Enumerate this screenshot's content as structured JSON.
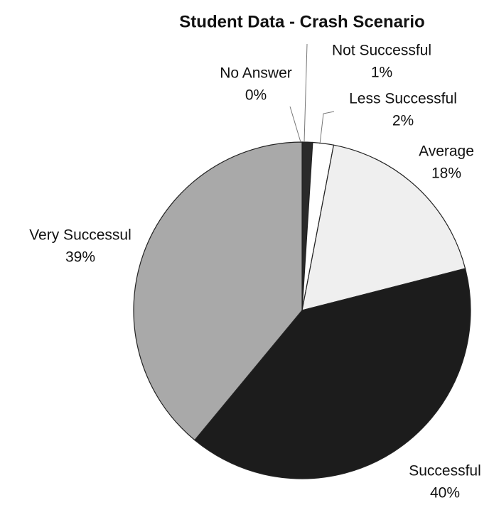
{
  "chart_data": {
    "type": "pie",
    "title": "Student Data - Crash Scenario",
    "categories": [
      "No Answer",
      "Not Successful",
      "Less Successful",
      "Average",
      "Successful",
      "Very Successul"
    ],
    "values": [
      0,
      1,
      2,
      18,
      40,
      39
    ],
    "value_labels": [
      "0%",
      "1%",
      "2%",
      "18%",
      "40%",
      "39%"
    ],
    "colors": [
      "#444444",
      "#2a2a2a",
      "#ffffff",
      "#efefef",
      "#1c1c1c",
      "#a9a9a9"
    ]
  }
}
